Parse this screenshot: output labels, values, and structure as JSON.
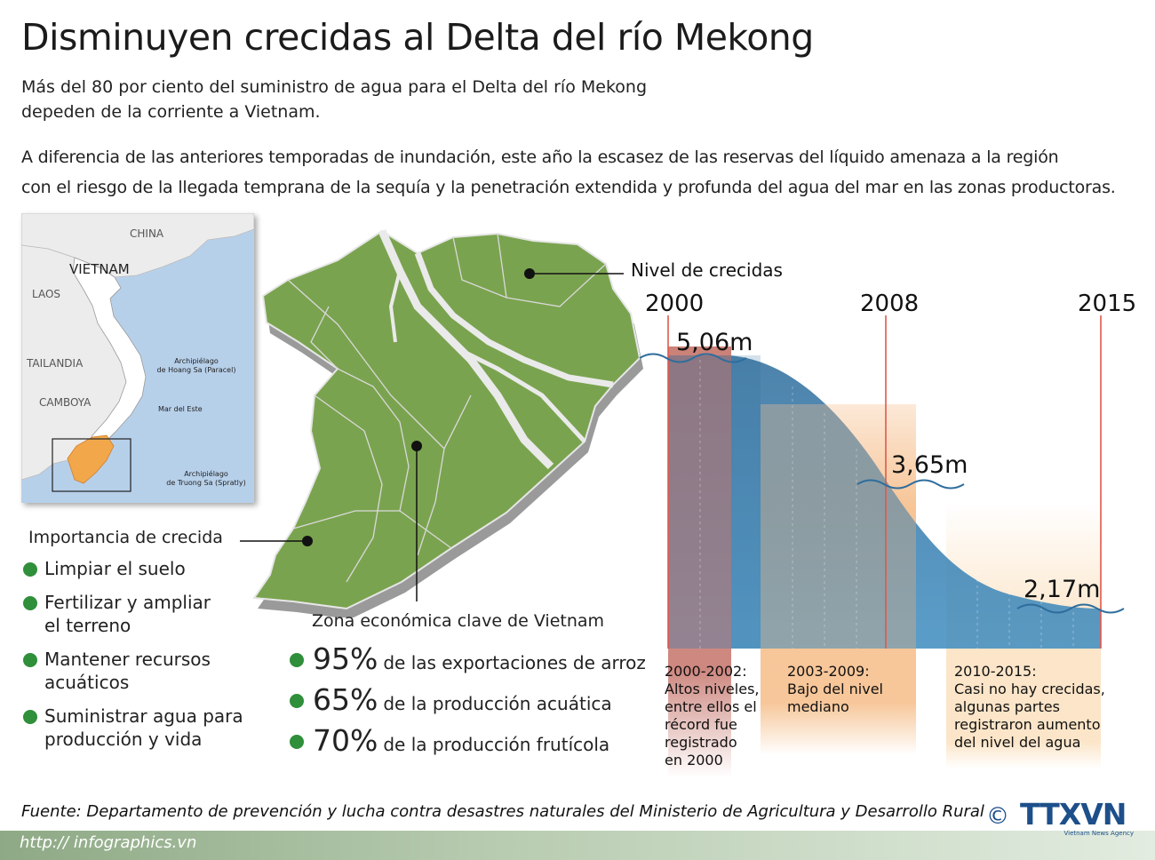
{
  "title": "Disminuyen crecidas al Delta del río Mekong",
  "subtitle": [
    "Más del 80 por ciento del suministro de agua para el Delta del río Mekong",
    "depeden de la corriente a Vietnam."
  ],
  "paragraph": [
    "A diferencia de las anteriores temporadas de inundación, este año la escasez de las reservas del líquido amenaza a la región",
    "con el riesgo de la llegada temprana de la sequía y la penetración extendida y profunda del agua del mar en las zonas productoras."
  ],
  "inset_map": {
    "labels": {
      "china": "CHINA",
      "vietnam": "VIETNAM",
      "laos": "LAOS",
      "tailandia": "TAILANDIA",
      "camboya": "CAMBOYA"
    },
    "small_labels": {
      "paracel": [
        "Archipiélago",
        "de  Hoang Sa (Paracel)"
      ],
      "mar": "Mar del Este",
      "spratly": [
        "Archipiélago",
        "de Truong Sa (Spratly)"
      ]
    },
    "colors": {
      "sea": "#b7d0ea",
      "land": "#ececec",
      "delta": "#f2a84a",
      "vietnam_land": "#ffffff"
    }
  },
  "importance": {
    "title": "Importancia de crecida",
    "items": [
      [
        "Limpiar el suelo"
      ],
      [
        "Fertilizar y ampliar",
        "el terreno"
      ],
      [
        "Mantener recursos acuáticos"
      ],
      [
        "Suministrar agua para",
        "producción y vida"
      ]
    ]
  },
  "economic_zone": {
    "title": "Zona económica clave de Vietnam",
    "stats": [
      {
        "pct": "95%",
        "desc": "de las exportaciones de arroz"
      },
      {
        "pct": "65%",
        "desc": "de la producción acuática"
      },
      {
        "pct": "70%",
        "desc": "de la producción frutícola"
      }
    ]
  },
  "delta_map": {
    "colors": {
      "land": "#7aa34f",
      "land_edge": "#d9d9d9",
      "shadow": "#9a9a9a"
    }
  },
  "flood_chart": {
    "legend_label": "Nivel de crecidas",
    "years": [
      "2000",
      "2008",
      "2015"
    ],
    "levels": [
      {
        "year": 2000,
        "value": "5,06m"
      },
      {
        "year": 2008,
        "value": "3,65m"
      },
      {
        "year": 2015,
        "value": "2,17m"
      }
    ],
    "periods": [
      {
        "lines": [
          "2000-2002:",
          "Altos niveles,",
          "entre ellos el",
          "récord fue",
          "registrado",
          "en 2000"
        ]
      },
      {
        "lines": [
          "2003-2009:",
          "Bajo del nivel",
          "mediano"
        ]
      },
      {
        "lines": [
          "2010-2015:",
          "Casi no hay crecidas,",
          "algunas partes",
          "registraron aumento",
          "del nivel del agua"
        ]
      }
    ],
    "colors": {
      "water": "#3b82b5",
      "period1": "#c87b72",
      "period2": "#f6c08e",
      "period3": "#fbe2c2",
      "year_line": "#e0584b"
    }
  },
  "source": "Fuente: Departamento de prevención y lucha contra desastres naturales del Ministerio de Agricultura y Desarrollo Rural",
  "url": "http:// infographics.vn",
  "logo": {
    "copyright": "©",
    "brand": "TTXVN",
    "tagline": "Vietnam News Agency"
  }
}
